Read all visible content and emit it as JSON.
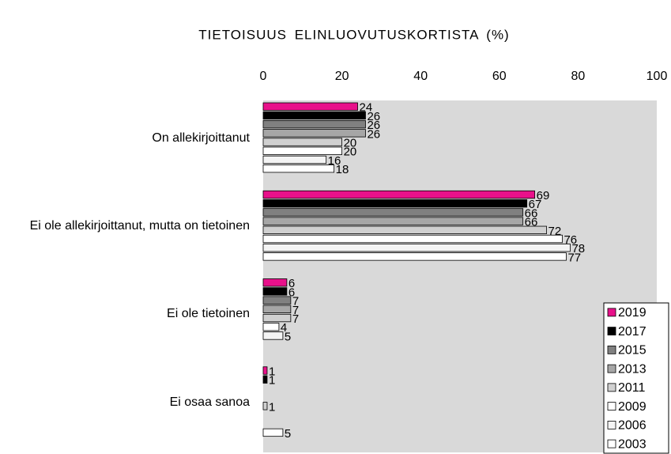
{
  "chart_data": {
    "type": "bar",
    "orientation": "horizontal",
    "title": "TIETOISUUS ELINLUOVUTUSKORTISTA (%)",
    "categories": [
      "On allekirjoittanut",
      "Ei ole allekirjoittanut, mutta on tietoinen",
      "Ei ole tietoinen",
      "Ei osaa sanoa"
    ],
    "series": [
      {
        "name": "2019",
        "color": "#e8118a",
        "values": [
          24,
          69,
          6,
          1
        ]
      },
      {
        "name": "2017",
        "color": "#000000",
        "values": [
          26,
          67,
          6,
          1
        ]
      },
      {
        "name": "2015",
        "color": "#808080",
        "values": [
          26,
          66,
          7,
          null
        ]
      },
      {
        "name": "2013",
        "color": "#a6a6a6",
        "values": [
          26,
          66,
          7,
          null
        ]
      },
      {
        "name": "2011",
        "color": "#d0d0d0",
        "values": [
          20,
          72,
          7,
          1
        ]
      },
      {
        "name": "2009",
        "color": "#ffffff",
        "values": [
          20,
          76,
          4,
          null
        ]
      },
      {
        "name": "2006",
        "color": "#f4f4f4",
        "values": [
          16,
          78,
          5,
          null
        ]
      },
      {
        "name": "2003",
        "color": "#ffffff",
        "values": [
          18,
          77,
          null,
          5
        ]
      }
    ],
    "xlim": [
      0,
      100
    ],
    "xticks": [
      0,
      20,
      40,
      60,
      80,
      100
    ],
    "legend": "bottom-right",
    "plot_background": "#d9d9d9"
  }
}
